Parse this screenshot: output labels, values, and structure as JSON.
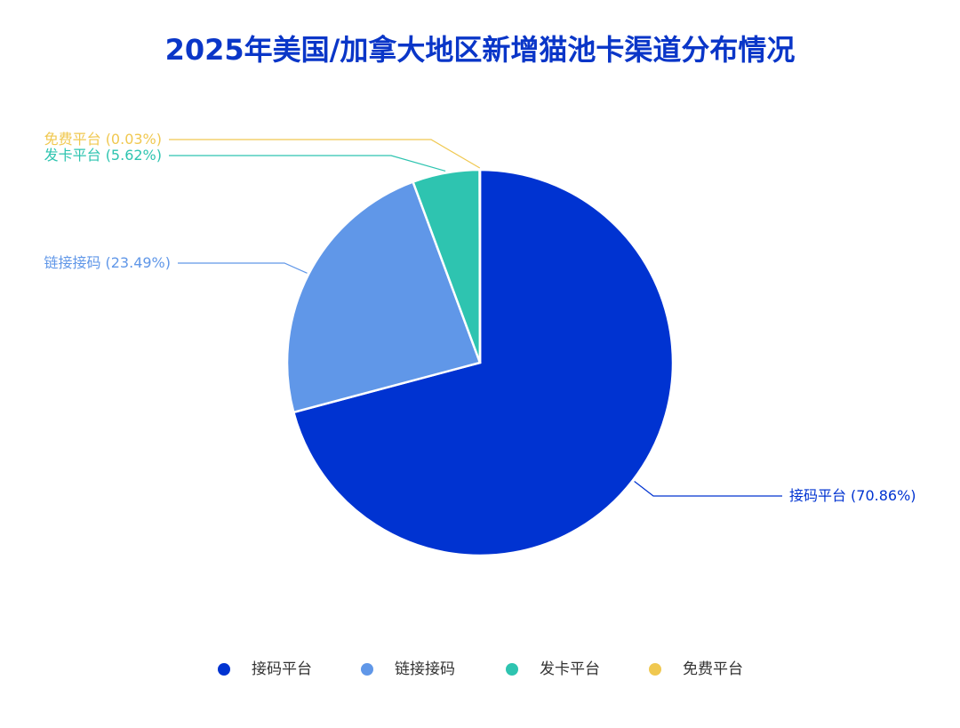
{
  "chart_data": {
    "type": "pie",
    "title": "2025年美国/加拿大地区新增猫池卡渠道分布情况",
    "categories": [
      "接码平台",
      "链接接码",
      "发卡平台",
      "免费平台"
    ],
    "values": [
      70.86,
      23.49,
      5.62,
      0.03
    ],
    "value_labels": [
      "(70.86%)",
      "(23.49%)",
      "(5.62%)",
      "(0.03%)"
    ],
    "colors": [
      "#0033d1",
      "#6097e8",
      "#2ec4b0",
      "#f0c850"
    ],
    "legend": "bottom"
  }
}
